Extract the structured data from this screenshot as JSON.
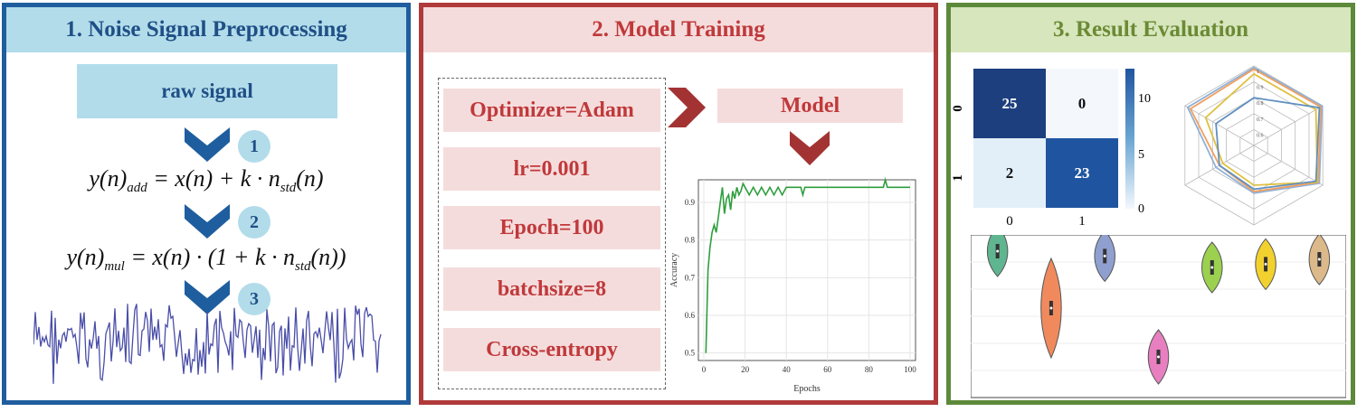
{
  "panels": {
    "preprocessing": {
      "title": "1. Noise Signal Preprocessing",
      "raw_label": "raw signal",
      "steps": [
        "1",
        "2",
        "3"
      ]
    },
    "training": {
      "title": "2. Model Training",
      "params": [
        "Optimizer=Adam",
        "lr=0.001",
        "Epoch=100",
        "batchsize=8",
        "Cross-entropy"
      ],
      "model_label": "Model"
    },
    "evaluation": {
      "title": "3. Result Evaluation"
    }
  },
  "colors": {
    "blue": "#1f5e9e",
    "red": "#b03a3a",
    "green": "#5d8a3a",
    "curve": "#2e9e3e"
  },
  "chart_data": [
    {
      "type": "line",
      "xlabel": "Epochs",
      "ylabel": "Accuracy",
      "xlim": [
        0,
        100
      ],
      "ylim": [
        0.48,
        0.96
      ],
      "xticks": [
        "0",
        "20",
        "40",
        "60",
        "80",
        "100"
      ],
      "yticks": [
        "0.5",
        "0.6",
        "0.7",
        "0.8",
        "0.9"
      ],
      "x": [
        1,
        2,
        3,
        4,
        5,
        6,
        7,
        8,
        9,
        10,
        11,
        12,
        13,
        14,
        15,
        16,
        17,
        18,
        19,
        20,
        22,
        24,
        26,
        28,
        30,
        32,
        34,
        36,
        38,
        40,
        45,
        47,
        48,
        49,
        50,
        55,
        60,
        65,
        70,
        75,
        80,
        85,
        87,
        88,
        89,
        90,
        95,
        100
      ],
      "y": [
        0.5,
        0.72,
        0.78,
        0.82,
        0.84,
        0.82,
        0.86,
        0.9,
        0.94,
        0.87,
        0.91,
        0.92,
        0.88,
        0.93,
        0.91,
        0.94,
        0.92,
        0.93,
        0.95,
        0.94,
        0.92,
        0.94,
        0.92,
        0.94,
        0.92,
        0.94,
        0.92,
        0.94,
        0.92,
        0.94,
        0.94,
        0.94,
        0.92,
        0.94,
        0.94,
        0.94,
        0.94,
        0.94,
        0.94,
        0.94,
        0.94,
        0.94,
        0.94,
        0.96,
        0.94,
        0.94,
        0.94,
        0.94
      ]
    },
    {
      "type": "heatmap",
      "row_labels": [
        "0",
        "1"
      ],
      "col_labels": [
        "0",
        "1"
      ],
      "values": [
        [
          25,
          0
        ],
        [
          2,
          23
        ]
      ],
      "colorbar_ticks": [
        "10",
        "5",
        "0"
      ]
    },
    {
      "type": "radar",
      "tick_labels": [
        "1",
        "0.9",
        "0.8",
        "0.7",
        "0.6"
      ]
    },
    {
      "type": "violin",
      "series": [
        {
          "color": "#5fb58f",
          "center": 0.9
        },
        {
          "color": "#f08a5d",
          "center": 0.55
        },
        {
          "color": "#8f9fcf",
          "center": 0.87
        },
        {
          "color": "#e87fc0",
          "center": 0.25
        },
        {
          "color": "#9bd14f",
          "center": 0.8
        },
        {
          "color": "#f2d12e",
          "center": 0.82
        },
        {
          "color": "#dcb98a",
          "center": 0.85
        }
      ]
    }
  ]
}
